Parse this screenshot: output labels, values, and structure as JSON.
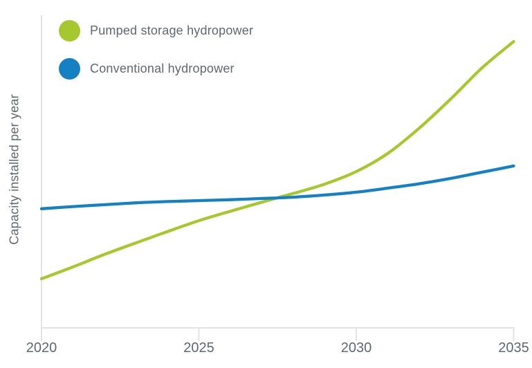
{
  "colors": {
    "background": "#ffffff",
    "axis": "#e3e3e3",
    "text": "#5e686e"
  },
  "chart_data": {
    "type": "line",
    "title": "",
    "xlabel": "",
    "ylabel": "Capacity installed per year",
    "x": [
      2020,
      2021,
      2022,
      2023,
      2024,
      2025,
      2026,
      2027,
      2028,
      2029,
      2030,
      2031,
      2032,
      2033,
      2034,
      2035
    ],
    "x_ticks": [
      2020,
      2025,
      2030,
      2035
    ],
    "x_tick_labels": [
      "2020",
      "2025",
      "2030",
      "2035"
    ],
    "xlim": [
      2020,
      2035
    ],
    "ylim": [
      0,
      100
    ],
    "grid": false,
    "legend_position": "top-left",
    "value_scale_note": "y axis has no numeric labels; values are relative estimates (percent of plot height)",
    "series": [
      {
        "name": "Pumped storage hydropower",
        "color": "#a6c72e",
        "values": [
          15.7,
          19.5,
          23.5,
          27.2,
          30.8,
          34.3,
          37.3,
          40.2,
          43.0,
          46.0,
          50.0,
          55.8,
          63.9,
          73.2,
          83.2,
          91.6
        ]
      },
      {
        "name": "Conventional hydropower",
        "color": "#1681c2",
        "values": [
          38.1,
          38.8,
          39.4,
          40.0,
          40.4,
          40.7,
          41.0,
          41.4,
          41.8,
          42.5,
          43.4,
          44.7,
          46.1,
          47.8,
          49.8,
          51.8
        ]
      }
    ]
  }
}
